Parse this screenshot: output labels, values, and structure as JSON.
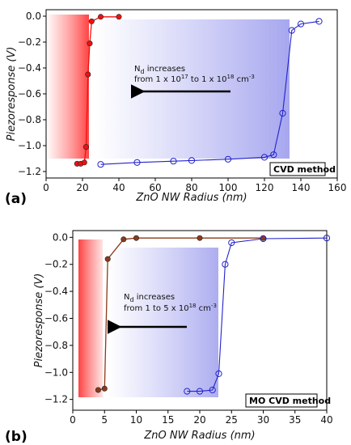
{
  "chart_data": [
    {
      "type": "line",
      "panel_label": "(a)",
      "xlabel": "ZnO NW Radius (nm)",
      "ylabel": "Piezoresponse (V)",
      "xlim": [
        0,
        160
      ],
      "ylim": [
        -1.25,
        0.05
      ],
      "xticks": [
        0,
        20,
        40,
        60,
        80,
        100,
        120,
        140,
        160
      ],
      "yticks": [
        0.0,
        -0.2,
        -0.4,
        -0.6,
        -0.8,
        -1.0,
        -1.2
      ],
      "xtick_labels": [
        "0",
        "20",
        "40",
        "60",
        "80",
        "100",
        "120",
        "140",
        "160"
      ],
      "ytick_labels": [
        "0.0",
        "−0.2",
        "−0.4",
        "−0.6",
        "−0.8",
        "−1.0",
        "−1.2"
      ],
      "badge": "CVD method",
      "annotation": {
        "line1_main": "N",
        "line1_sub": "d",
        "line1_rest": " increases",
        "line2_pre": "from 1 x 10",
        "line2_sup1": "17",
        "line2_mid": " to 1 x 10",
        "line2_sup2": "18",
        "line2_post": " cm",
        "line2_sup3": "-3"
      },
      "series": [
        {
          "marker": "filled-circle",
          "color": "#ee1111",
          "x": [
            17,
            19,
            21,
            22,
            23,
            24,
            25,
            30,
            40
          ],
          "y": [
            -1.14,
            -1.14,
            -1.13,
            -1.01,
            -0.45,
            -0.21,
            -0.04,
            -0.005,
            -0.005
          ]
        },
        {
          "marker": "open-circle",
          "color": "#2222cc",
          "x": [
            30,
            50,
            70,
            80,
            100,
            120,
            125,
            130,
            135,
            140,
            150
          ],
          "y": [
            -1.145,
            -1.13,
            -1.12,
            -1.115,
            -1.105,
            -1.09,
            -1.07,
            -0.75,
            -0.11,
            -0.06,
            -0.04
          ]
        }
      ]
    },
    {
      "type": "line",
      "panel_label": "(b)",
      "xlabel": "ZnO NW Radius (nm)",
      "ylabel": "Piezoresponse (V)",
      "xlim": [
        0,
        40
      ],
      "ylim": [
        -1.28,
        0.05
      ],
      "xticks": [
        0,
        5,
        10,
        15,
        20,
        25,
        30,
        35,
        40
      ],
      "yticks": [
        0.0,
        -0.2,
        -0.4,
        -0.6,
        -0.8,
        -1.0,
        -1.2
      ],
      "xtick_labels": [
        "0",
        "5",
        "10",
        "15",
        "20",
        "25",
        "30",
        "35",
        "40"
      ],
      "ytick_labels": [
        "0.0",
        "−0.2",
        "−0.4",
        "−0.6",
        "−0.8",
        "−1.0",
        "−1.2"
      ],
      "badge": "MO CVD method",
      "annotation": {
        "line1_main": "N",
        "line1_sub": "d",
        "line1_rest": " increases",
        "line2_pre": "from 1 to 5 x 10",
        "line2_sup1": "18",
        "line2_post": " cm",
        "line2_sup3": "-3"
      },
      "series": [
        {
          "marker": "filled-circle",
          "color": "#8b3a1a",
          "x": [
            4,
            5,
            5.5,
            8,
            10,
            20,
            30
          ],
          "y": [
            -1.13,
            -1.12,
            -0.16,
            -0.015,
            -0.005,
            -0.005,
            -0.005
          ]
        },
        {
          "marker": "open-circle",
          "color": "#2222cc",
          "x": [
            18,
            20,
            22,
            23,
            24,
            25,
            30,
            40
          ],
          "y": [
            -1.14,
            -1.14,
            -1.13,
            -1.01,
            -0.2,
            -0.04,
            -0.01,
            -0.005
          ]
        }
      ]
    }
  ]
}
